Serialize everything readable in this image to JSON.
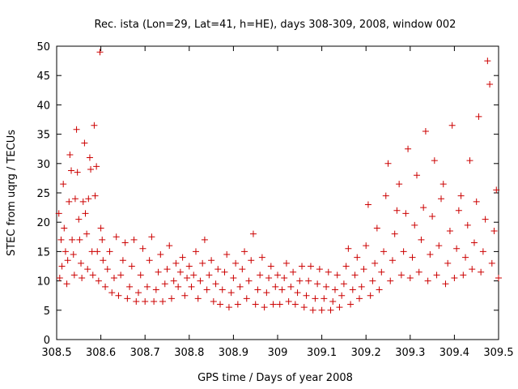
{
  "chart_data": {
    "type": "scatter",
    "title": "Rec. ista (Lon=29, Lat=41, h=HE), days 308-309, 2008, window 002",
    "xlabel": "GPS time / Days of year 2008",
    "ylabel": "STEC from uqrg / TECUs",
    "xlim": [
      308.5,
      309.5
    ],
    "ylim": [
      0,
      50
    ],
    "x_ticks": [
      "308.5",
      "308.6",
      "308.7",
      "308.8",
      "308.9",
      "309",
      "309.1",
      "309.2",
      "309.3",
      "309.4",
      "309.5"
    ],
    "y_ticks": [
      "0",
      "5",
      "10",
      "15",
      "20",
      "25",
      "30",
      "35",
      "40",
      "45",
      "50"
    ],
    "grid": false,
    "legend": "none",
    "marker": "plus",
    "color": "#cc0000",
    "series": [
      {
        "points": [
          [
            308.505,
            21.5
          ],
          [
            308.507,
            10.5
          ],
          [
            308.51,
            17.0
          ],
          [
            308.512,
            12.5
          ],
          [
            308.515,
            26.5
          ],
          [
            308.517,
            19.0
          ],
          [
            308.52,
            15.0
          ],
          [
            308.523,
            9.5
          ],
          [
            308.525,
            13.5
          ],
          [
            308.528,
            23.5
          ],
          [
            308.53,
            31.5
          ],
          [
            308.533,
            28.8
          ],
          [
            308.535,
            17.0
          ],
          [
            308.538,
            14.5
          ],
          [
            308.54,
            11.0
          ],
          [
            308.542,
            24.0
          ],
          [
            308.545,
            35.8
          ],
          [
            308.547,
            28.5
          ],
          [
            308.55,
            20.5
          ],
          [
            308.552,
            17.0
          ],
          [
            308.555,
            13.0
          ],
          [
            308.557,
            10.5
          ],
          [
            308.56,
            23.5
          ],
          [
            308.563,
            33.5
          ],
          [
            308.565,
            21.5
          ],
          [
            308.568,
            18.0
          ],
          [
            308.57,
            12.0
          ],
          [
            308.572,
            24.0
          ],
          [
            308.575,
            31.0
          ],
          [
            308.577,
            29.0
          ],
          [
            308.58,
            15.0
          ],
          [
            308.582,
            11.0
          ],
          [
            308.585,
            36.5
          ],
          [
            308.587,
            24.5
          ],
          [
            308.59,
            29.5
          ],
          [
            308.592,
            15.0
          ],
          [
            308.595,
            10.0
          ],
          [
            308.598,
            49.0
          ],
          [
            308.6,
            19.0
          ],
          [
            308.603,
            17.0
          ],
          [
            308.605,
            13.5
          ],
          [
            308.61,
            9.0
          ],
          [
            308.615,
            12.0
          ],
          [
            308.62,
            15.0
          ],
          [
            308.625,
            8.0
          ],
          [
            308.63,
            10.5
          ],
          [
            308.635,
            17.5
          ],
          [
            308.64,
            7.5
          ],
          [
            308.645,
            11.0
          ],
          [
            308.65,
            13.5
          ],
          [
            308.655,
            16.5
          ],
          [
            308.66,
            7.0
          ],
          [
            308.665,
            9.0
          ],
          [
            308.67,
            12.5
          ],
          [
            308.675,
            17.0
          ],
          [
            308.68,
            6.5
          ],
          [
            308.685,
            8.0
          ],
          [
            308.69,
            11.0
          ],
          [
            308.695,
            15.5
          ],
          [
            308.7,
            6.5
          ],
          [
            308.705,
            9.0
          ],
          [
            308.71,
            13.5
          ],
          [
            308.715,
            17.5
          ],
          [
            308.72,
            6.5
          ],
          [
            308.725,
            8.5
          ],
          [
            308.73,
            11.5
          ],
          [
            308.735,
            14.5
          ],
          [
            308.74,
            6.5
          ],
          [
            308.745,
            9.5
          ],
          [
            308.75,
            12.0
          ],
          [
            308.755,
            16.0
          ],
          [
            308.76,
            7.0
          ],
          [
            308.765,
            10.0
          ],
          [
            308.77,
            13.0
          ],
          [
            308.775,
            9.0
          ],
          [
            308.78,
            11.5
          ],
          [
            308.785,
            14.0
          ],
          [
            308.79,
            7.5
          ],
          [
            308.795,
            10.5
          ],
          [
            308.8,
            12.5
          ],
          [
            308.805,
            9.0
          ],
          [
            308.81,
            11.0
          ],
          [
            308.815,
            15.0
          ],
          [
            308.82,
            7.0
          ],
          [
            308.825,
            10.0
          ],
          [
            308.83,
            13.0
          ],
          [
            308.835,
            17.0
          ],
          [
            308.84,
            8.5
          ],
          [
            308.845,
            11.0
          ],
          [
            308.85,
            13.5
          ],
          [
            308.855,
            6.5
          ],
          [
            308.86,
            9.5
          ],
          [
            308.865,
            12.0
          ],
          [
            308.87,
            6.0
          ],
          [
            308.875,
            8.5
          ],
          [
            308.88,
            11.5
          ],
          [
            308.885,
            14.5
          ],
          [
            308.89,
            5.5
          ],
          [
            308.895,
            8.0
          ],
          [
            308.9,
            10.5
          ],
          [
            308.905,
            13.0
          ],
          [
            308.91,
            6.0
          ],
          [
            308.915,
            9.0
          ],
          [
            308.92,
            12.0
          ],
          [
            308.925,
            15.0
          ],
          [
            308.93,
            7.0
          ],
          [
            308.935,
            10.0
          ],
          [
            308.94,
            13.5
          ],
          [
            308.945,
            18.0
          ],
          [
            308.95,
            6.0
          ],
          [
            308.955,
            8.5
          ],
          [
            308.96,
            11.0
          ],
          [
            308.965,
            14.0
          ],
          [
            308.97,
            5.5
          ],
          [
            308.975,
            8.0
          ],
          [
            308.98,
            10.5
          ],
          [
            308.985,
            12.5
          ],
          [
            308.99,
            6.0
          ],
          [
            308.995,
            9.0
          ],
          [
            309.0,
            11.0
          ],
          [
            309.005,
            6.0
          ],
          [
            309.01,
            8.5
          ],
          [
            309.015,
            10.5
          ],
          [
            309.02,
            13.0
          ],
          [
            309.025,
            6.5
          ],
          [
            309.03,
            9.0
          ],
          [
            309.035,
            11.5
          ],
          [
            309.04,
            6.0
          ],
          [
            309.045,
            8.0
          ],
          [
            309.05,
            10.0
          ],
          [
            309.055,
            12.5
          ],
          [
            309.06,
            5.5
          ],
          [
            309.065,
            7.5
          ],
          [
            309.07,
            10.0
          ],
          [
            309.075,
            12.5
          ],
          [
            309.08,
            5.0
          ],
          [
            309.085,
            7.0
          ],
          [
            309.09,
            9.5
          ],
          [
            309.095,
            12.0
          ],
          [
            309.1,
            5.0
          ],
          [
            309.105,
            7.0
          ],
          [
            309.11,
            9.0
          ],
          [
            309.115,
            11.5
          ],
          [
            309.12,
            5.0
          ],
          [
            309.125,
            6.5
          ],
          [
            309.13,
            8.5
          ],
          [
            309.135,
            11.0
          ],
          [
            309.14,
            5.5
          ],
          [
            309.145,
            7.5
          ],
          [
            309.15,
            9.5
          ],
          [
            309.155,
            12.5
          ],
          [
            309.16,
            15.5
          ],
          [
            309.165,
            6.0
          ],
          [
            309.17,
            8.5
          ],
          [
            309.175,
            11.0
          ],
          [
            309.18,
            14.0
          ],
          [
            309.185,
            7.0
          ],
          [
            309.19,
            9.0
          ],
          [
            309.195,
            12.0
          ],
          [
            309.2,
            16.0
          ],
          [
            309.205,
            23.0
          ],
          [
            309.21,
            7.5
          ],
          [
            309.215,
            10.0
          ],
          [
            309.22,
            13.0
          ],
          [
            309.225,
            19.0
          ],
          [
            309.23,
            8.5
          ],
          [
            309.235,
            11.5
          ],
          [
            309.24,
            15.0
          ],
          [
            309.245,
            24.5
          ],
          [
            309.25,
            30.0
          ],
          [
            309.255,
            10.0
          ],
          [
            309.26,
            13.5
          ],
          [
            309.265,
            18.0
          ],
          [
            309.27,
            22.0
          ],
          [
            309.275,
            26.5
          ],
          [
            309.28,
            11.0
          ],
          [
            309.285,
            15.0
          ],
          [
            309.29,
            21.5
          ],
          [
            309.295,
            32.5
          ],
          [
            309.3,
            10.5
          ],
          [
            309.305,
            14.0
          ],
          [
            309.31,
            19.5
          ],
          [
            309.315,
            28.0
          ],
          [
            309.32,
            11.5
          ],
          [
            309.325,
            17.0
          ],
          [
            309.33,
            22.5
          ],
          [
            309.335,
            35.5
          ],
          [
            309.34,
            10.0
          ],
          [
            309.345,
            14.5
          ],
          [
            309.35,
            21.0
          ],
          [
            309.355,
            30.5
          ],
          [
            309.36,
            11.0
          ],
          [
            309.365,
            16.0
          ],
          [
            309.37,
            24.0
          ],
          [
            309.375,
            26.5
          ],
          [
            309.38,
            9.5
          ],
          [
            309.385,
            13.0
          ],
          [
            309.39,
            18.5
          ],
          [
            309.395,
            36.5
          ],
          [
            309.4,
            10.5
          ],
          [
            309.405,
            15.5
          ],
          [
            309.41,
            22.0
          ],
          [
            309.415,
            24.5
          ],
          [
            309.42,
            11.0
          ],
          [
            309.425,
            14.0
          ],
          [
            309.43,
            19.5
          ],
          [
            309.435,
            30.5
          ],
          [
            309.44,
            12.0
          ],
          [
            309.445,
            16.5
          ],
          [
            309.45,
            23.5
          ],
          [
            309.455,
            38.0
          ],
          [
            309.46,
            11.5
          ],
          [
            309.465,
            15.0
          ],
          [
            309.47,
            20.5
          ],
          [
            309.475,
            47.5
          ],
          [
            309.48,
            43.5
          ],
          [
            309.485,
            13.0
          ],
          [
            309.49,
            18.5
          ],
          [
            309.495,
            25.5
          ],
          [
            309.5,
            10.5
          ]
        ]
      }
    ]
  }
}
